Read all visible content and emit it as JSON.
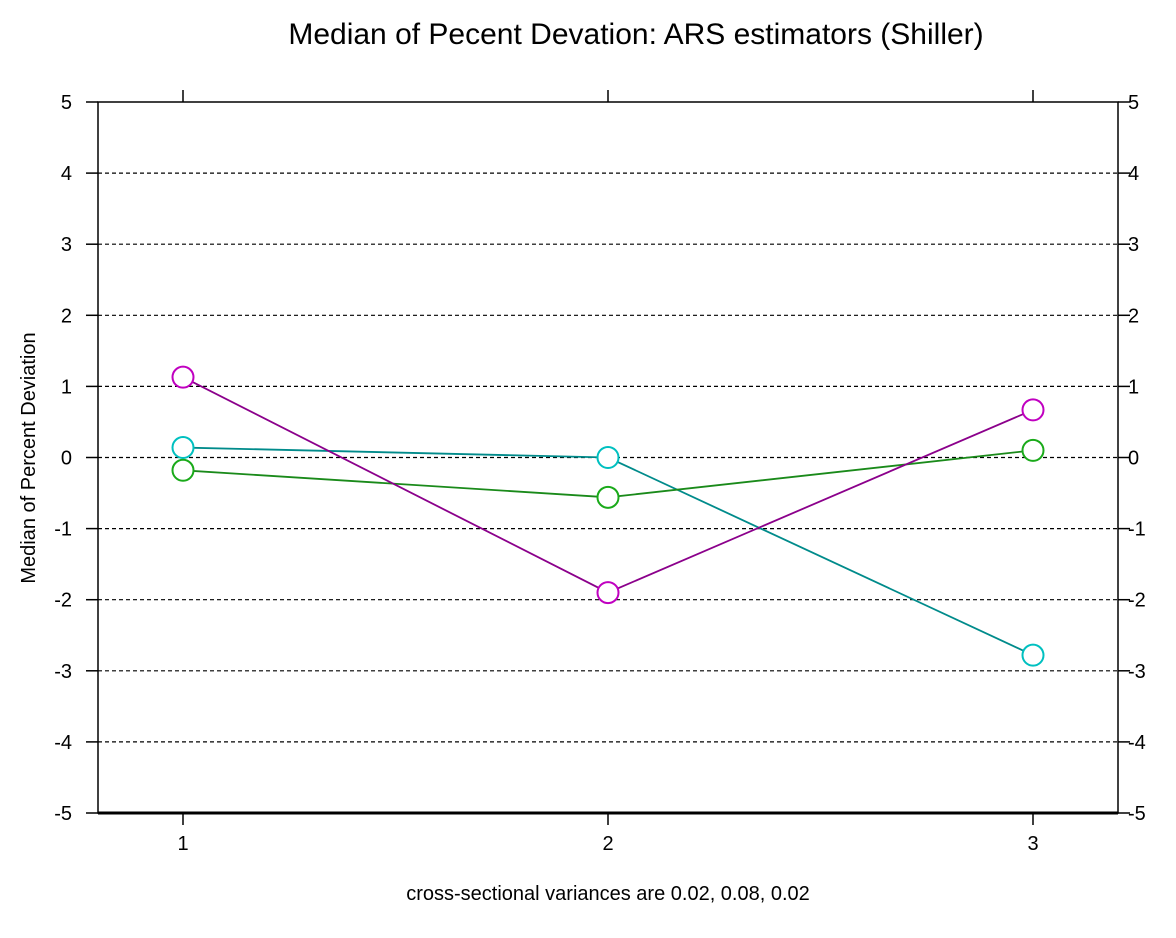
{
  "chart_data": {
    "type": "line",
    "title": "Median of Pecent Devation:  ARS estimators (Shiller)",
    "ylabel": "Median of Percent Deviation",
    "xlabel": "cross-sectional variances are 0.02, 0.08, 0.02",
    "x": [
      1,
      2,
      3
    ],
    "xticks": [
      "1",
      "2",
      "3"
    ],
    "xlim": [
      0.8,
      3.2
    ],
    "ylim": [
      -5,
      5
    ],
    "yticks": [
      -5,
      -4,
      -3,
      -2,
      -1,
      0,
      1,
      2,
      3,
      4,
      5
    ],
    "yticklabels": [
      "-5",
      "-4",
      "-3",
      "-2",
      "-1",
      "0",
      "1",
      "2",
      "3",
      "4",
      "5"
    ],
    "grid": "horizontal dashed",
    "series": [
      {
        "color": "#008b8b",
        "marker_color": "#00c0c0",
        "values": [
          0.14,
          0.0,
          -2.78
        ]
      },
      {
        "color": "#1a8a1a",
        "marker_color": "#1aaa1a",
        "values": [
          -0.18,
          -0.56,
          0.1
        ]
      },
      {
        "color": "#8b008b",
        "marker_color": "#c000c0",
        "values": [
          1.13,
          -1.9,
          0.67
        ]
      }
    ]
  }
}
